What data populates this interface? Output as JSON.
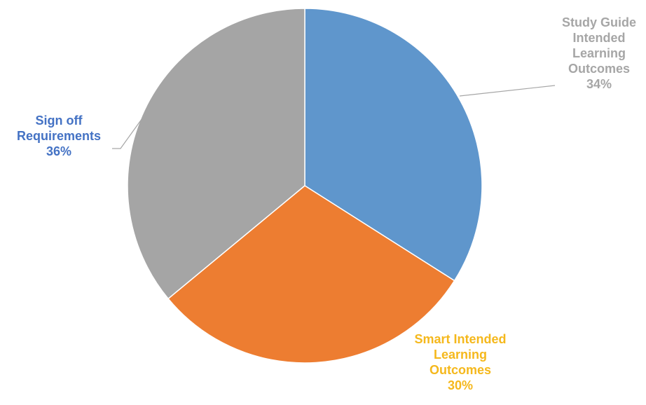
{
  "chart_data": {
    "type": "pie",
    "title": "",
    "slices": [
      {
        "label": "Study Guide Intended Learning Outcomes",
        "label_lines": [
          "Study Guide",
          "Intended",
          "Learning",
          "Outcomes"
        ],
        "value": 34,
        "value_label": "34%",
        "color": "#5f96cc",
        "label_color": "#a6a6a6"
      },
      {
        "label": "Smart Intended Learning Outcomes",
        "label_lines": [
          "Smart Intended",
          "Learning",
          "Outcomes"
        ],
        "value": 30,
        "value_label": "30%",
        "color": "#ed7d31",
        "label_color": "#f5b81c"
      },
      {
        "label": "Sign off Requirements",
        "label_lines": [
          "Sign off",
          "Requirements"
        ],
        "value": 36,
        "value_label": "36%",
        "color": "#a5a5a5",
        "label_color": "#4472c4"
      }
    ],
    "start_angle_deg": 0,
    "direction": "clockwise",
    "legend": "none",
    "data_labels": "outside with leader lines"
  }
}
